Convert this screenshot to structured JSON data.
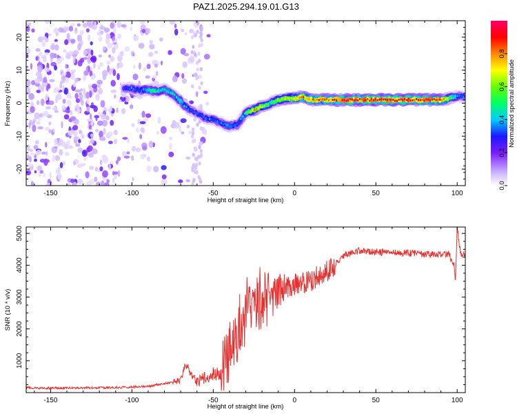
{
  "title": "PAZ1.2025.294.19.01.G13",
  "chart_data": [
    {
      "type": "heatmap",
      "xlabel": "Height of straight line (km)",
      "ylabel": "Frequency (Hz)",
      "xlim": [
        -165,
        105
      ],
      "ylim": [
        -25,
        25
      ],
      "xticks": [
        -150,
        -100,
        -50,
        0,
        50,
        100
      ],
      "xtick_labels": [
        "-150",
        "-100",
        "-50",
        "0",
        "50",
        "100"
      ],
      "yticks": [
        -20,
        -10,
        0,
        10,
        20
      ],
      "ytick_labels": [
        "-20",
        "-10",
        "0",
        "10",
        "20"
      ],
      "colorbar": {
        "label": "Normalized spectral amplitude",
        "range": [
          0,
          1
        ],
        "ticks": [
          0.0,
          0.2,
          0.4,
          0.6,
          0.8
        ],
        "tick_labels": [
          "0.0",
          "0.2",
          "0.4",
          "0.6",
          "0.8"
        ],
        "colors": [
          "#ffffff",
          "#ccb3ff",
          "#7a1aff",
          "#1a1aff",
          "#00ccff",
          "#00ff66",
          "#66ff00",
          "#ffff00",
          "#ff8800",
          "#ff0000",
          "#ff0066"
        ]
      },
      "ridge": {
        "height_km": [
          -105,
          -100,
          -95,
          -90,
          -85,
          -80,
          -75,
          -70,
          -65,
          -60,
          -55,
          -50,
          -45,
          -40,
          -35,
          -30,
          -25,
          -20,
          -15,
          -10,
          -5,
          0,
          5,
          10,
          20,
          30,
          50,
          70,
          90,
          95,
          100,
          105
        ],
        "frequency_hz": [
          4.5,
          4.5,
          4,
          4,
          3.5,
          4,
          3,
          0.5,
          -2,
          -3,
          -4.5,
          -5,
          -6,
          -7,
          -6.5,
          -3,
          -2,
          -1,
          0,
          1,
          1.5,
          1.5,
          2,
          1,
          1,
          1,
          1,
          1,
          1,
          1.5,
          2,
          2
        ],
        "amplitude": [
          0.3,
          0.35,
          0.35,
          0.45,
          0.5,
          0.45,
          0.45,
          0.45,
          0.35,
          0.3,
          0.35,
          0.35,
          0.35,
          0.4,
          0.35,
          0.45,
          0.8,
          0.6,
          0.55,
          0.6,
          0.7,
          0.75,
          0.85,
          0.8,
          0.85,
          0.9,
          0.95,
          0.95,
          0.9,
          0.6,
          0.4,
          0.35
        ]
      },
      "noise_region_km": [
        -165,
        -60
      ]
    },
    {
      "type": "line",
      "xlabel": "Height of straight line (km)",
      "ylabel": "SNR (10 * v/v)",
      "xlim": [
        -165,
        105
      ],
      "ylim": [
        0,
        5200
      ],
      "xticks": [
        -150,
        -100,
        -50,
        0,
        50,
        100
      ],
      "xtick_labels": [
        "-150",
        "-100",
        "-50",
        "0",
        "50",
        "100"
      ],
      "yticks": [
        1000,
        2000,
        3000,
        4000,
        5000
      ],
      "ytick_labels": [
        "1000",
        "2000",
        "3000",
        "4000",
        "5000"
      ],
      "color": "#e8302f",
      "series": [
        {
          "name": "SNR",
          "x": [
            -165,
            -150,
            -130,
            -110,
            -90,
            -80,
            -70,
            -67,
            -60,
            -50,
            -45,
            -40,
            -35,
            -30,
            -25,
            -20,
            -15,
            -10,
            -5,
            0,
            5,
            10,
            15,
            20,
            25,
            30,
            35,
            40,
            50,
            60,
            70,
            80,
            90,
            95,
            98,
            99,
            100,
            102,
            105
          ],
          "y": [
            150,
            140,
            150,
            160,
            200,
            280,
            400,
            900,
            350,
            600,
            650,
            1300,
            1800,
            2300,
            2700,
            2900,
            3000,
            3100,
            3300,
            3400,
            3450,
            3500,
            3700,
            3800,
            4050,
            4300,
            4400,
            4450,
            4420,
            4400,
            4380,
            4350,
            4330,
            4350,
            4000,
            3500,
            5200,
            4400,
            4300
          ]
        }
      ]
    }
  ]
}
